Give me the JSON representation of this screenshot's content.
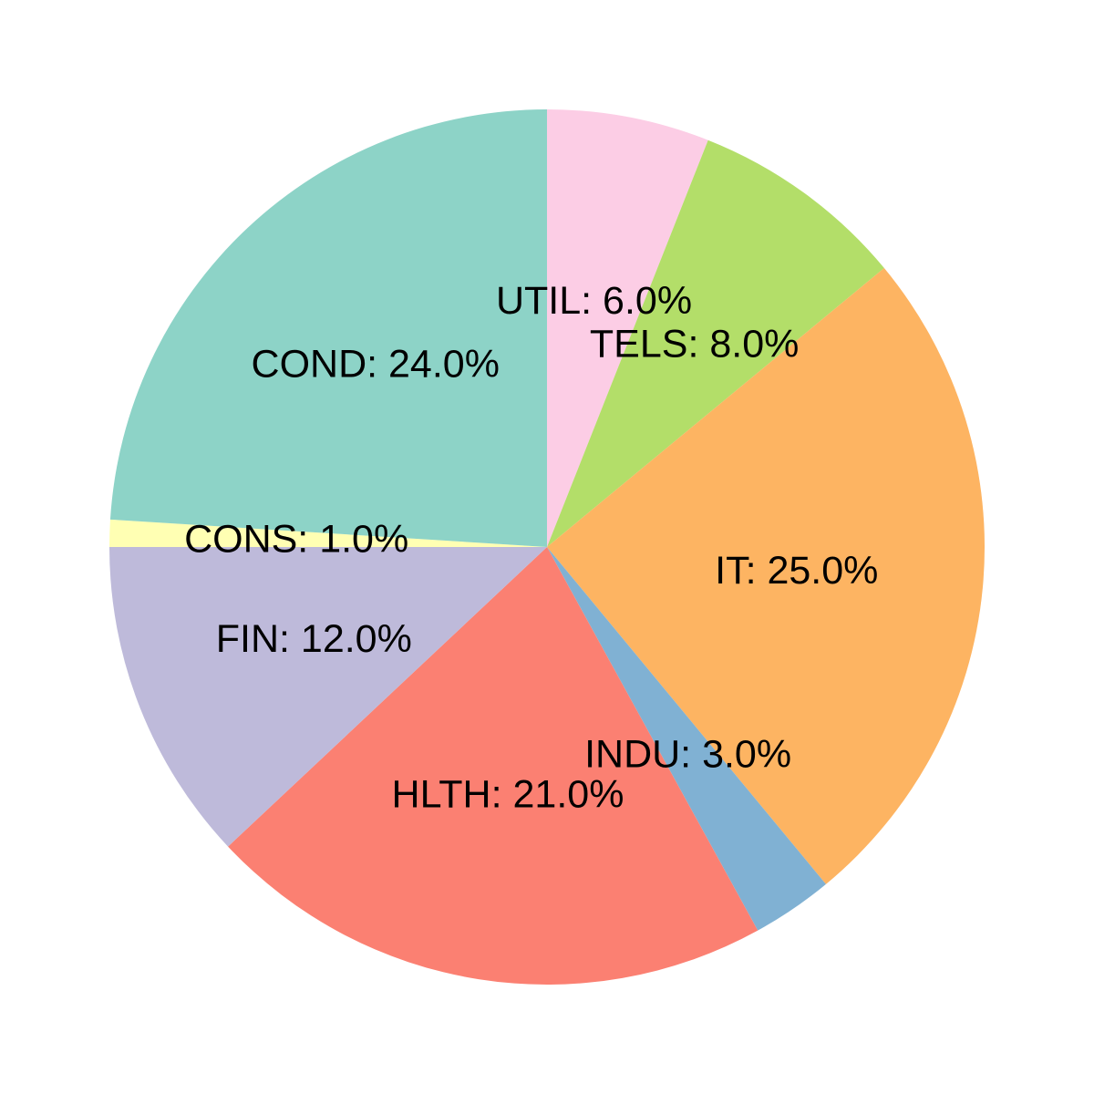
{
  "chart_data": {
    "type": "pie",
    "title": "",
    "start_angle_deg": 90,
    "direction": "clockwise",
    "slices": [
      {
        "label": "UTIL: 6.0%",
        "category": "UTIL",
        "value": 6.0,
        "color": "#FCCDE5"
      },
      {
        "label": "TELS: 8.0%",
        "category": "TELS",
        "value": 8.0,
        "color": "#B3DE69"
      },
      {
        "label": "IT: 25.0%",
        "category": "IT",
        "value": 25.0,
        "color": "#FDB462"
      },
      {
        "label": "INDU: 3.0%",
        "category": "INDU",
        "value": 3.0,
        "color": "#80B1D3"
      },
      {
        "label": "HLTH: 21.0%",
        "category": "HLTH",
        "value": 21.0,
        "color": "#FB8072"
      },
      {
        "label": "FIN: 12.0%",
        "category": "FIN",
        "value": 12.0,
        "color": "#BEBADA"
      },
      {
        "label": "CONS: 1.0%",
        "category": "CONS",
        "value": 1.0,
        "color": "#FFFFB3"
      },
      {
        "label": "COND: 24.0%",
        "category": "COND",
        "value": 24.0,
        "color": "#8DD3C7"
      }
    ]
  }
}
